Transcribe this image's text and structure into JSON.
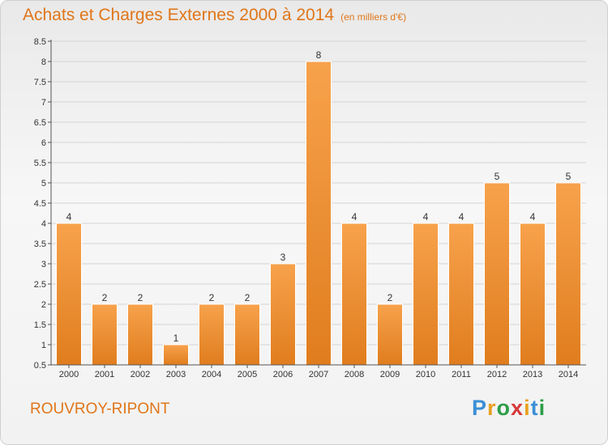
{
  "title": "Achats et Charges Externes 2000 à 2014",
  "subtitle": "(en milliers d'€)",
  "commune": "ROUVROY-RIPONT",
  "logo": {
    "letters": [
      "P",
      "r",
      "o",
      "x",
      "i",
      "t",
      "i"
    ],
    "colors": [
      "#3a8fd6",
      "#e8a020",
      "#2e9e4a",
      "#d63a3a",
      "#e8a020",
      "#3a8fd6",
      "#2e9e4a"
    ]
  },
  "colors": {
    "accent": "#e0761a",
    "bar_light": "#f7a24c",
    "bar_dark": "#e07d1e"
  },
  "chart_data": {
    "type": "bar",
    "categories": [
      "2000",
      "2001",
      "2002",
      "2003",
      "2004",
      "2005",
      "2006",
      "2007",
      "2008",
      "2009",
      "2010",
      "2011",
      "2012",
      "2013",
      "2014"
    ],
    "values": [
      4,
      2,
      2,
      1,
      2,
      2,
      3,
      8,
      4,
      2,
      4,
      4,
      5,
      4,
      5
    ],
    "value_labels": [
      "4",
      "2",
      "2",
      "1",
      "2",
      "2",
      "3",
      "8",
      "4",
      "2",
      "4",
      "4",
      "5",
      "4",
      "5"
    ],
    "y_ticks": [
      "0.5",
      "1",
      "1.5",
      "2",
      "2.5",
      "3",
      "3.5",
      "4",
      "4.5",
      "5",
      "5.5",
      "6",
      "6.5",
      "7",
      "7.5",
      "8",
      "8.5"
    ],
    "ylim": [
      0.5,
      8.5
    ],
    "grid": true
  }
}
